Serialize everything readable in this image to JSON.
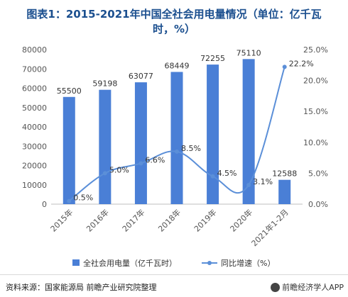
{
  "title": {
    "line1": "图表1：2015-2021年中国全社会用电量情况（单位：亿千瓦",
    "line2": "时，%）"
  },
  "chart_data": {
    "type": "bar",
    "categories": [
      "2015年",
      "2016年",
      "2017年",
      "2018年",
      "2019年",
      "2020年",
      "2021年1-2月"
    ],
    "series": [
      {
        "name": "全社会用电量（亿千瓦时）",
        "type": "bar",
        "axis": "left",
        "values": [
          55500,
          59198,
          63077,
          68449,
          72255,
          75110,
          12588
        ],
        "labels": [
          "55500",
          "59198",
          "63077",
          "68449",
          "72255",
          "75110",
          "12588"
        ],
        "color": "#4a7fd6"
      },
      {
        "name": "同比增速（%）",
        "type": "line",
        "axis": "right",
        "values": [
          0.5,
          5.0,
          6.6,
          8.5,
          4.5,
          3.1,
          22.2
        ],
        "labels": [
          "0.5%",
          "5.0%",
          "6.6%",
          "8.5%",
          "4.5%",
          "3.1%",
          "22.2%"
        ],
        "color": "#5b8fd8"
      }
    ],
    "y_left": {
      "range": [
        0,
        80000
      ],
      "ticks": [
        0,
        10000,
        20000,
        30000,
        40000,
        50000,
        60000,
        70000,
        80000
      ],
      "tick_labels": [
        "0",
        "10000",
        "20000",
        "30000",
        "40000",
        "50000",
        "60000",
        "70000",
        "80000"
      ]
    },
    "y_right": {
      "range": [
        0,
        25
      ],
      "ticks": [
        0,
        5,
        10,
        15,
        20,
        25
      ],
      "tick_labels": [
        "0.0%",
        "5.0%",
        "10.0%",
        "15.0%",
        "20.0%",
        "25.0%"
      ]
    },
    "grid": false,
    "legend": "bottom"
  },
  "footer": {
    "source": "资料来源：国家能源局 前瞻产业研究院整理",
    "brand": "前瞻经济学人APP"
  }
}
